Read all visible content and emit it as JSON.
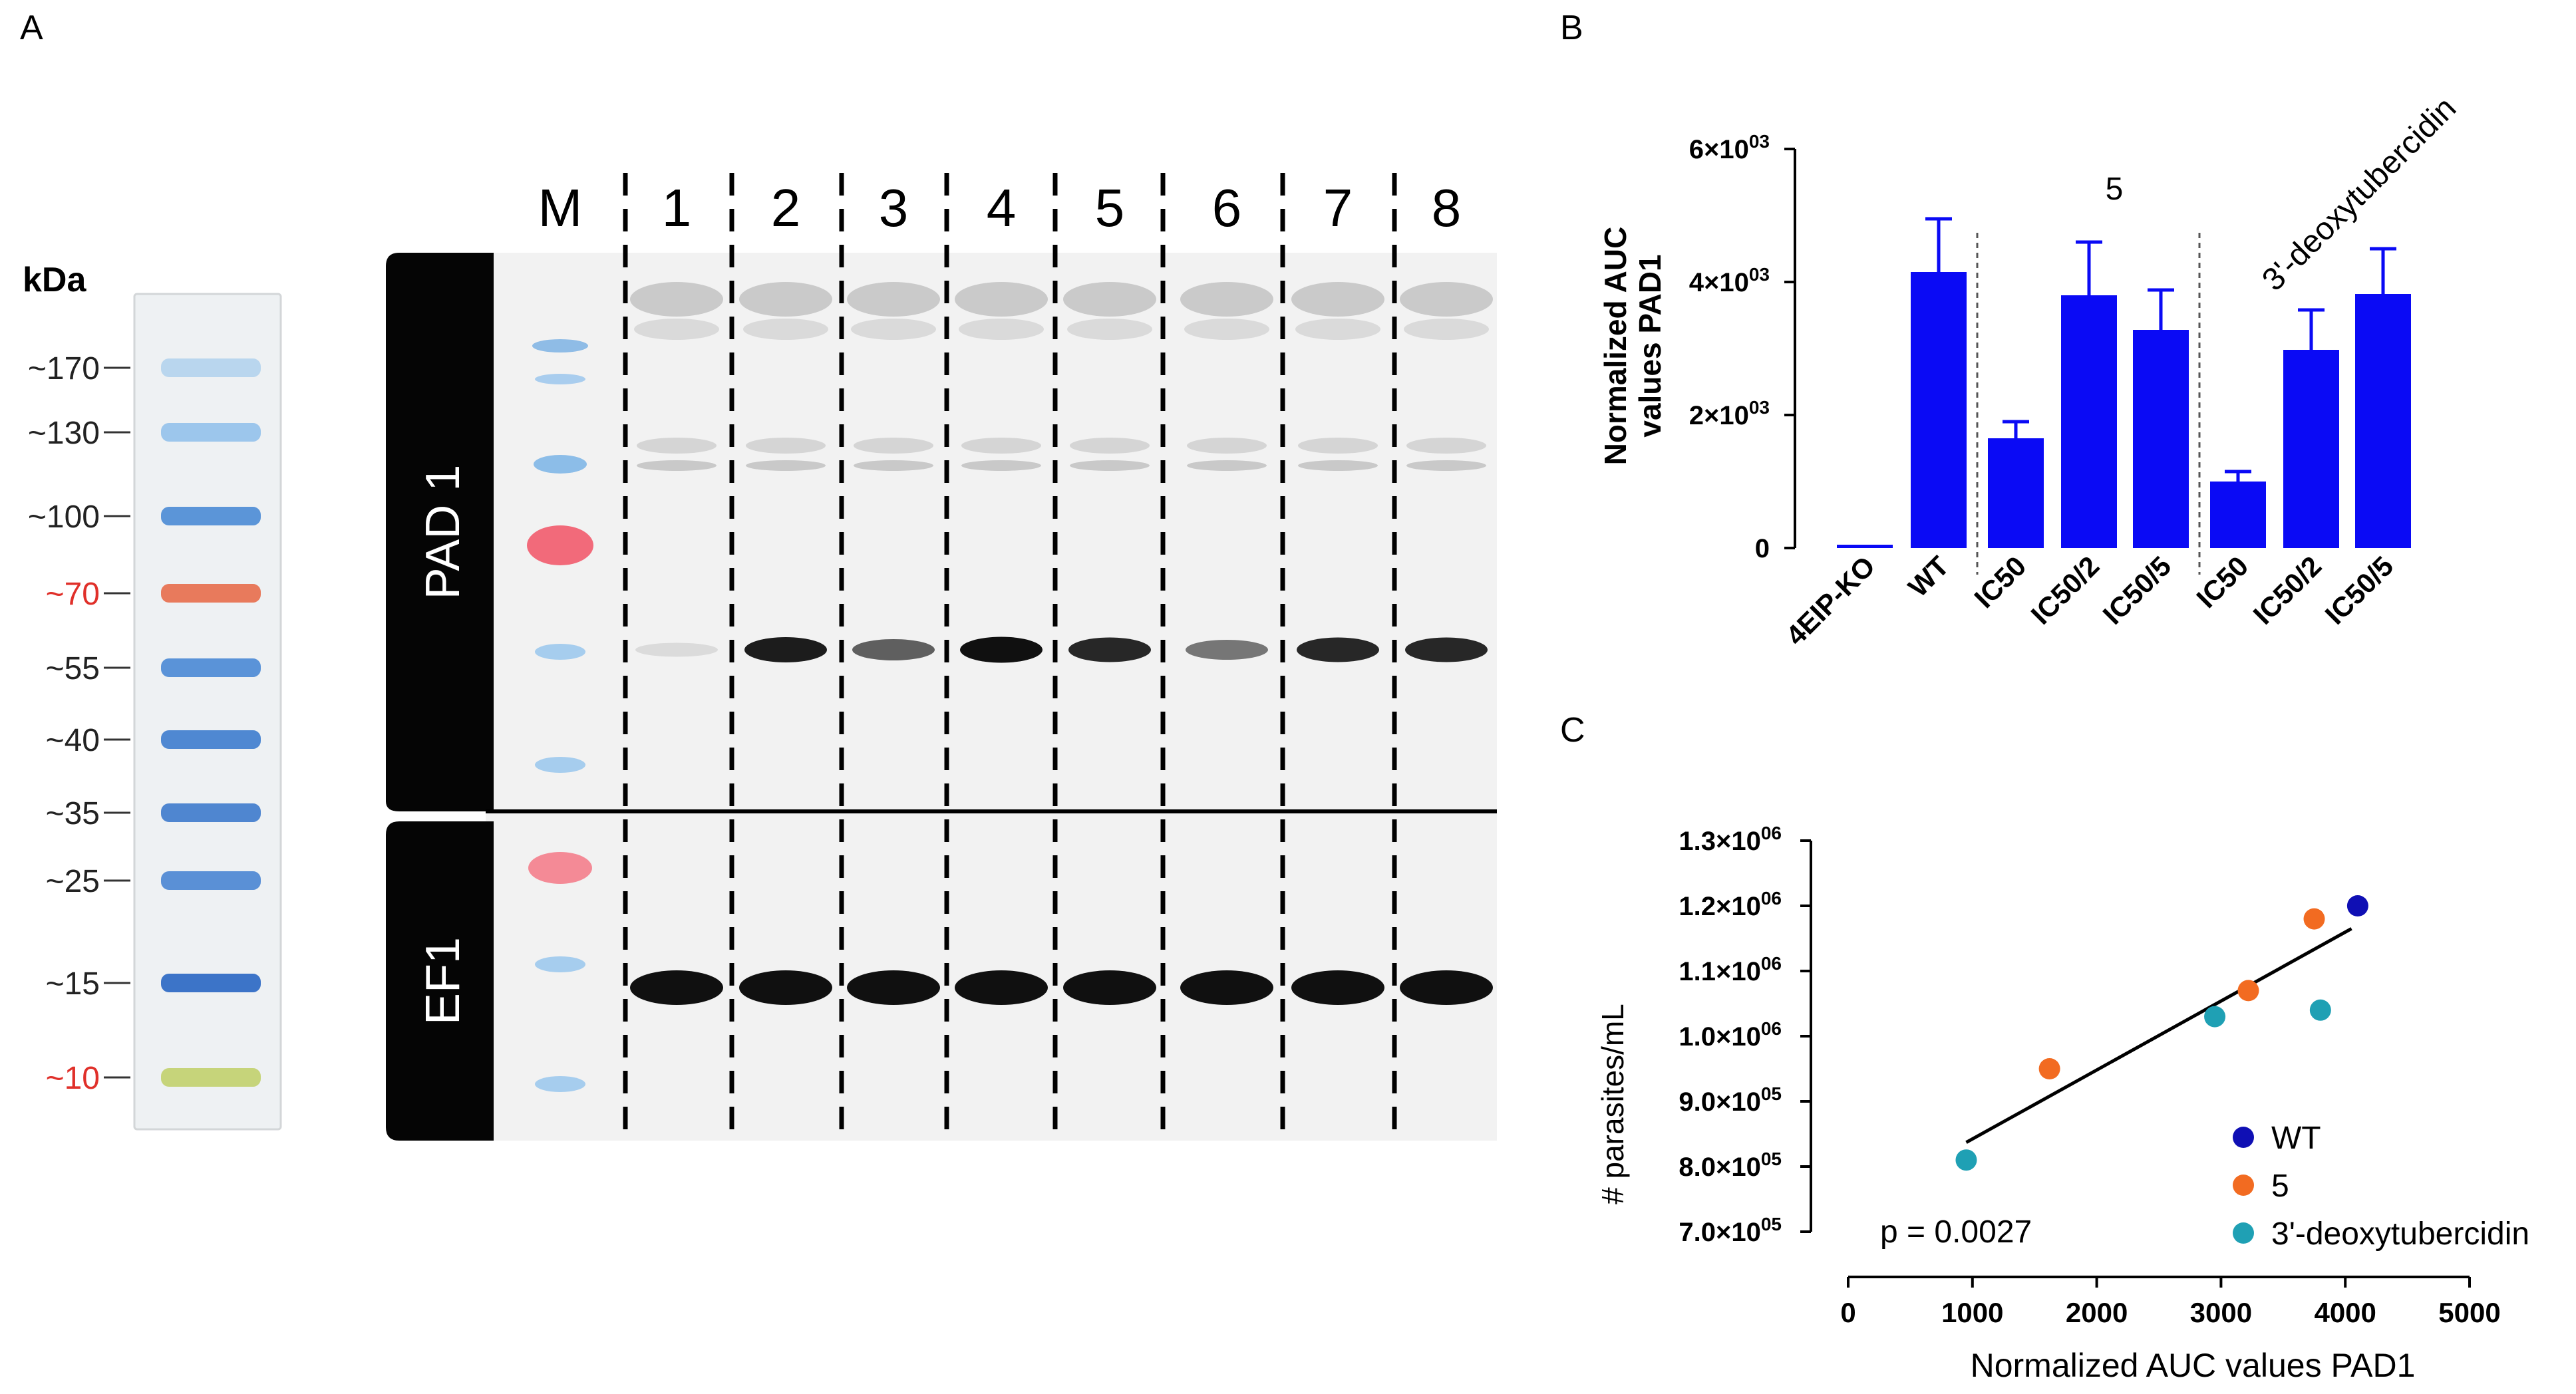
{
  "panel_labels": {
    "a": "A",
    "b": "B",
    "c": "C"
  },
  "ladder": {
    "unit": "kDa",
    "bands": [
      {
        "label": "~170",
        "color": "#b9d6ee",
        "red": false
      },
      {
        "label": "~130",
        "color": "#9cc6ec",
        "red": false
      },
      {
        "label": "~100",
        "color": "#5b95d8",
        "red": false
      },
      {
        "label": "~70",
        "color": "#e87a5c",
        "red": true
      },
      {
        "label": "~55",
        "color": "#5a93d8",
        "red": false
      },
      {
        "label": "~40",
        "color": "#4f88d2",
        "red": false
      },
      {
        "label": "~35",
        "color": "#4f86d0",
        "red": false
      },
      {
        "label": "~25",
        "color": "#5a90d6",
        "red": false
      },
      {
        "label": "~15",
        "color": "#3c74c8",
        "red": false
      },
      {
        "label": "~10",
        "color": "#c6d47a",
        "red": true
      }
    ]
  },
  "blot": {
    "lanes": [
      "M",
      "1",
      "2",
      "3",
      "4",
      "5",
      "6",
      "7",
      "8"
    ],
    "pad1_label": "PAD 1",
    "ef1_label": "EF1",
    "pad1_band_intensity": [
      0.05,
      0.9,
      0.6,
      0.95,
      0.85,
      0.5,
      0.85,
      0.85
    ],
    "ef1_band_intensity": [
      0.95,
      0.95,
      0.95,
      0.95,
      0.95,
      0.95,
      0.95,
      0.95
    ]
  },
  "chart_data": [
    {
      "type": "bar",
      "panel": "B",
      "title": "",
      "ylabel": "Normalized AUC values PAD1",
      "ylabel_lines": [
        "Normalized AUC",
        "values PAD1"
      ],
      "xlabel": "",
      "categories": [
        "4EIP-KO",
        "WT",
        "IC50",
        "IC50/2",
        "IC50/5",
        "IC50",
        "IC50/2",
        "IC50/5"
      ],
      "values": [
        50,
        4150,
        1650,
        3800,
        3280,
        1000,
        2980,
        3820
      ],
      "errors": [
        0,
        800,
        250,
        800,
        600,
        150,
        600,
        680
      ],
      "ylim": [
        0,
        6000
      ],
      "yticks": [
        {
          "value": 0,
          "mantissa": "0",
          "exp": ""
        },
        {
          "value": 2000,
          "mantissa": "2×10",
          "exp": "03"
        },
        {
          "value": 4000,
          "mantissa": "4×10",
          "exp": "03"
        },
        {
          "value": 6000,
          "mantissa": "6×10",
          "exp": "03"
        }
      ],
      "bar_color": "#0a0af5",
      "group_labels": [
        "5",
        "3'-deoxytubercidin"
      ]
    },
    {
      "type": "scatter",
      "panel": "C",
      "title": "",
      "xlabel": "Normalized AUC values PAD1",
      "ylabel": "# parasites/mL",
      "xlim": [
        0,
        5000
      ],
      "ylim": [
        700000,
        1300000
      ],
      "xticks": [
        "0",
        "1000",
        "2000",
        "3000",
        "4000",
        "5000"
      ],
      "yticks": [
        {
          "value": 700000,
          "mantissa": "7.0×10",
          "exp": "05"
        },
        {
          "value": 800000,
          "mantissa": "8.0×10",
          "exp": "05"
        },
        {
          "value": 900000,
          "mantissa": "9.0×10",
          "exp": "05"
        },
        {
          "value": 1000000,
          "mantissa": "1.0×10",
          "exp": "06"
        },
        {
          "value": 1100000,
          "mantissa": "1.1×10",
          "exp": "06"
        },
        {
          "value": 1200000,
          "mantissa": "1.2×10",
          "exp": "06"
        },
        {
          "value": 1300000,
          "mantissa": "1.3×10",
          "exp": "06"
        }
      ],
      "series": [
        {
          "name": "WT",
          "color": "#0f0fb4",
          "points": [
            {
              "x": 4100,
              "y": 1200000
            }
          ]
        },
        {
          "name": "5",
          "color": "#f26b21",
          "points": [
            {
              "x": 1620,
              "y": 950000
            },
            {
              "x": 3220,
              "y": 1070000
            },
            {
              "x": 3750,
              "y": 1180000
            }
          ]
        },
        {
          "name": "3'-deoxytubercidin",
          "color": "#1fa0b4",
          "points": [
            {
              "x": 950,
              "y": 810000
            },
            {
              "x": 2950,
              "y": 1030000
            },
            {
              "x": 3800,
              "y": 1040000
            }
          ]
        }
      ],
      "fit_line": {
        "x": [
          950,
          4050
        ],
        "y": [
          837000,
          1165000
        ]
      },
      "annotation": "p = 0.0027"
    }
  ]
}
